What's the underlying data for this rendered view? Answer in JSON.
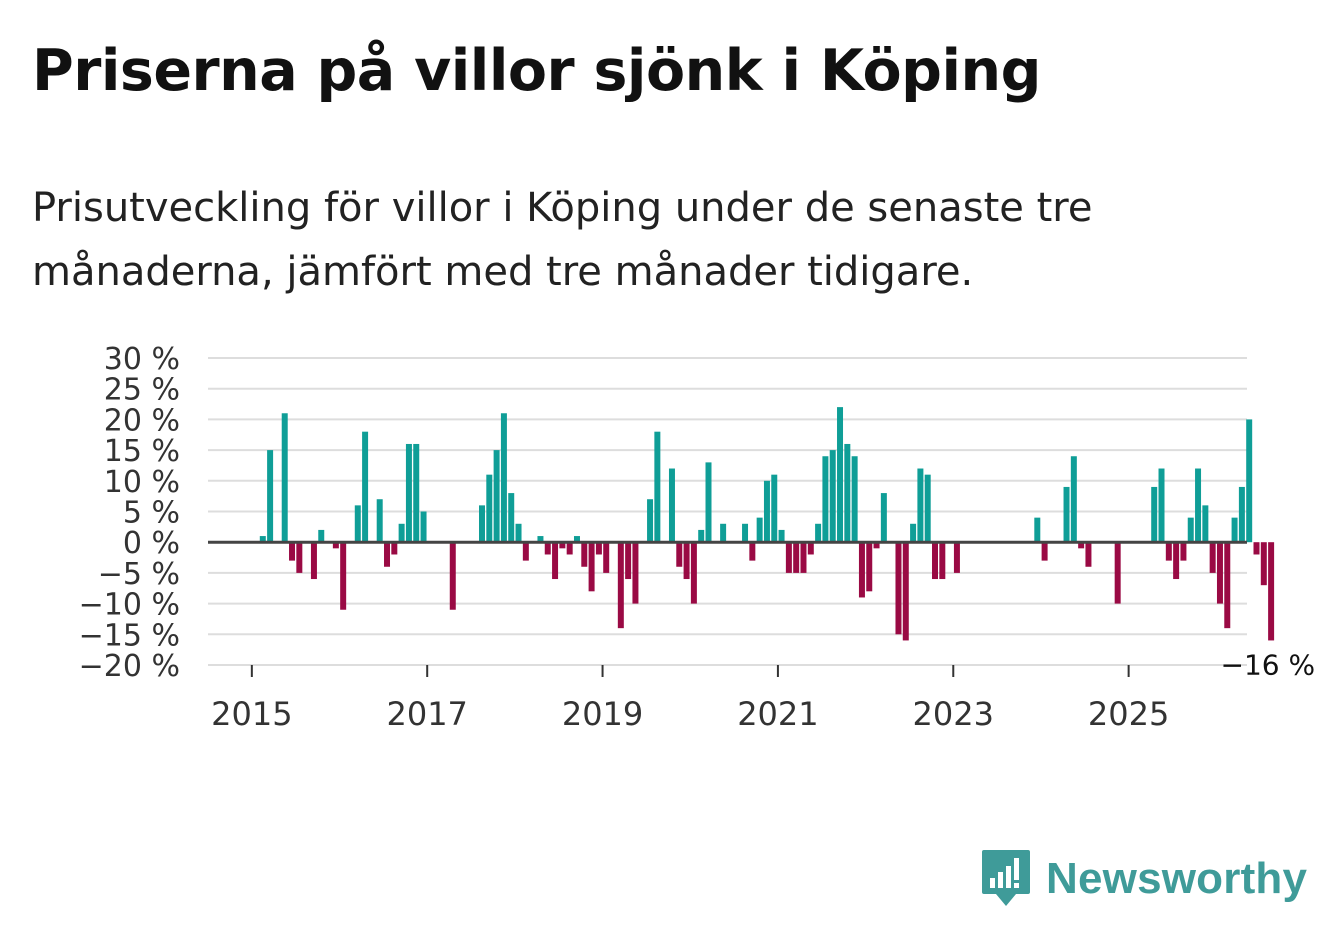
{
  "title": "Priserna på villor sjönk i Köping",
  "subtitle": "Prisutveckling för villor i Köping under de senaste tre månaderna, jämfört med tre månader tidigare.",
  "brand": {
    "name": "Newsworthy",
    "icon": "newsworthy-logo-icon",
    "color": "#3f9b99"
  },
  "colors": {
    "positive": "#0f9e97",
    "negative": "#9a0a44",
    "grid": "#dddddd",
    "zero": "#444444"
  },
  "chart_data": {
    "type": "bar",
    "title": "Priserna på villor sjönk i Köping",
    "xlabel": "",
    "ylabel": "",
    "ylim": [
      -20,
      30
    ],
    "y_ticks": [
      {
        "value": 30,
        "label": "30 %"
      },
      {
        "value": 25,
        "label": "25 %"
      },
      {
        "value": 20,
        "label": "20 %"
      },
      {
        "value": 15,
        "label": "15 %"
      },
      {
        "value": 10,
        "label": "10 %"
      },
      {
        "value": 5,
        "label": "5 %"
      },
      {
        "value": 0,
        "label": "0 %"
      },
      {
        "value": -5,
        "label": "−5 %"
      },
      {
        "value": -10,
        "label": "−10 %"
      },
      {
        "value": -15,
        "label": "−15 %"
      },
      {
        "value": -20,
        "label": "−20 %"
      }
    ],
    "x_ticks": [
      {
        "value": 2015,
        "label": "2015"
      },
      {
        "value": 2017,
        "label": "2017"
      },
      {
        "value": 2019,
        "label": "2019"
      },
      {
        "value": 2021,
        "label": "2021"
      },
      {
        "value": 2023,
        "label": "2023"
      },
      {
        "value": 2025,
        "label": "2025"
      }
    ],
    "x_range": [
      2014.5,
      2026.35
    ],
    "start_year": 2015,
    "period": "month",
    "values": [
      0,
      1,
      15,
      0,
      21,
      -3,
      -5,
      0,
      -6,
      2,
      0,
      -1,
      -11,
      0,
      6,
      18,
      0,
      7,
      -4,
      -2,
      3,
      16,
      16,
      5,
      0,
      0,
      0,
      -11,
      0,
      0,
      0,
      6,
      11,
      15,
      21,
      8,
      3,
      -3,
      0,
      1,
      -2,
      -6,
      -1,
      -2,
      1,
      -4,
      -8,
      -2,
      -5,
      0,
      -14,
      -6,
      -10,
      0,
      7,
      18,
      0,
      12,
      -4,
      -6,
      -10,
      2,
      13,
      0,
      3,
      0,
      0,
      3,
      -3,
      4,
      10,
      11,
      2,
      -5,
      -5,
      -5,
      -2,
      3,
      14,
      15,
      22,
      16,
      14,
      -9,
      -8,
      -1,
      8,
      0,
      -15,
      -16,
      3,
      12,
      11,
      -6,
      -6,
      0,
      -5,
      0,
      0,
      0,
      0,
      0,
      0,
      0,
      0,
      0,
      0,
      4,
      -3,
      0,
      0,
      9,
      14,
      -1,
      -4,
      0,
      0,
      0,
      -10,
      0,
      0,
      0,
      0,
      9,
      12,
      -3,
      -6,
      -3,
      4,
      12,
      6,
      -5,
      -10,
      -14,
      4,
      9,
      20,
      -2,
      -7,
      -16
    ],
    "annotation": {
      "label": "−16 %",
      "target": "last"
    },
    "grid": true,
    "legend": "none"
  }
}
